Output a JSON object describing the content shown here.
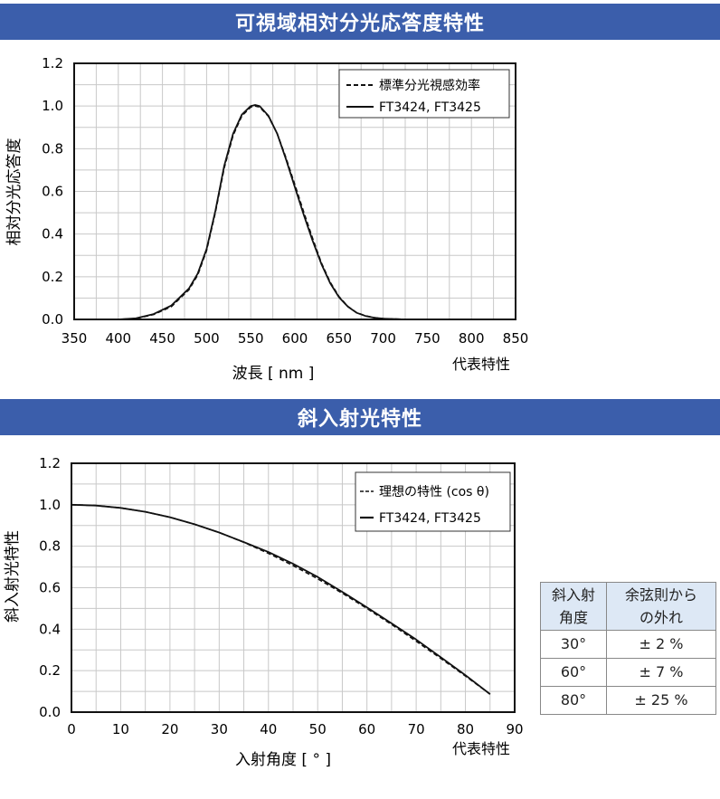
{
  "section1": {
    "title": "可視域相対分光応答度特性"
  },
  "section2": {
    "title": "斜入射光特性"
  },
  "chart_data": [
    {
      "type": "line",
      "title": "可視域相対分光応答度特性",
      "xlabel": "波長 [ nm ]",
      "ylabel": "相対分光応答度",
      "note": "代表特性",
      "xlim": [
        350,
        850
      ],
      "ylim": [
        0,
        1.2
      ],
      "xticks": [
        350,
        400,
        450,
        500,
        550,
        600,
        650,
        700,
        750,
        800,
        850
      ],
      "yticks": [
        0.0,
        0.2,
        0.4,
        0.6,
        0.8,
        1.0,
        1.2
      ],
      "ytick_labels": [
        "0.0",
        "0.2",
        "0.4",
        "0.6",
        "0.8",
        "1.0",
        "1.2"
      ],
      "grid": true,
      "legend_position": "top-right",
      "series": [
        {
          "name": "標準分光視感効率",
          "style": "dashed",
          "x": [
            380,
            400,
            420,
            440,
            460,
            480,
            490,
            500,
            510,
            520,
            530,
            540,
            550,
            555,
            560,
            570,
            580,
            590,
            600,
            610,
            620,
            630,
            640,
            650,
            660,
            670,
            680,
            690,
            700,
            720,
            750
          ],
          "y": [
            0.0,
            0.0,
            0.004,
            0.023,
            0.06,
            0.139,
            0.208,
            0.323,
            0.503,
            0.71,
            0.862,
            0.954,
            0.995,
            1.0,
            0.995,
            0.952,
            0.87,
            0.757,
            0.631,
            0.503,
            0.381,
            0.265,
            0.175,
            0.107,
            0.061,
            0.032,
            0.017,
            0.008,
            0.004,
            0.001,
            0.0
          ]
        },
        {
          "name": "FT3424, FT3425",
          "style": "solid",
          "x": [
            380,
            400,
            420,
            440,
            460,
            480,
            490,
            500,
            510,
            520,
            530,
            540,
            550,
            555,
            560,
            570,
            580,
            590,
            600,
            610,
            620,
            630,
            640,
            650,
            660,
            670,
            680,
            690,
            700,
            720,
            750
          ],
          "y": [
            0.0,
            0.0,
            0.005,
            0.025,
            0.065,
            0.145,
            0.215,
            0.33,
            0.51,
            0.72,
            0.87,
            0.96,
            1.0,
            1.005,
            1.0,
            0.955,
            0.87,
            0.75,
            0.62,
            0.49,
            0.37,
            0.26,
            0.17,
            0.104,
            0.06,
            0.031,
            0.016,
            0.008,
            0.004,
            0.001,
            0.0
          ]
        }
      ]
    },
    {
      "type": "line",
      "title": "斜入射光特性",
      "xlabel": "入射角度 [ ° ]",
      "ylabel": "斜入射光特性",
      "note": "代表特性",
      "xlim": [
        0,
        90
      ],
      "ylim": [
        0,
        1.2
      ],
      "xticks": [
        0,
        10,
        20,
        30,
        40,
        50,
        60,
        70,
        80,
        90
      ],
      "yticks": [
        0.0,
        0.2,
        0.4,
        0.6,
        0.8,
        1.0,
        1.2
      ],
      "ytick_labels": [
        "0.0",
        "0.2",
        "0.4",
        "0.6",
        "0.8",
        "1.0",
        "1.2"
      ],
      "grid": true,
      "legend_position": "top-right",
      "series": [
        {
          "name": "理想の特性 (cos θ)",
          "style": "dashed",
          "x": [
            0,
            5,
            10,
            15,
            20,
            25,
            30,
            35,
            40,
            45,
            50,
            55,
            60,
            65,
            70,
            75,
            80,
            85
          ],
          "y": [
            1.0,
            0.996,
            0.985,
            0.966,
            0.94,
            0.906,
            0.866,
            0.819,
            0.766,
            0.707,
            0.643,
            0.574,
            0.5,
            0.423,
            0.342,
            0.259,
            0.174,
            0.087
          ]
        },
        {
          "name": "FT3424, FT3425",
          "style": "solid",
          "x": [
            0,
            5,
            10,
            15,
            20,
            25,
            30,
            35,
            40,
            45,
            50,
            55,
            60,
            65,
            70,
            75,
            80,
            85
          ],
          "y": [
            1.0,
            0.996,
            0.985,
            0.966,
            0.94,
            0.906,
            0.866,
            0.82,
            0.772,
            0.715,
            0.652,
            0.58,
            0.505,
            0.428,
            0.35,
            0.265,
            0.178,
            0.087
          ]
        }
      ]
    }
  ],
  "deviation_table": {
    "headers": [
      "斜入射\n角度",
      "余弦則から\nの外れ"
    ],
    "rows": [
      [
        "30°",
        "± 2 %"
      ],
      [
        "60°",
        "± 7 %"
      ],
      [
        "80°",
        "± 25 %"
      ]
    ]
  }
}
